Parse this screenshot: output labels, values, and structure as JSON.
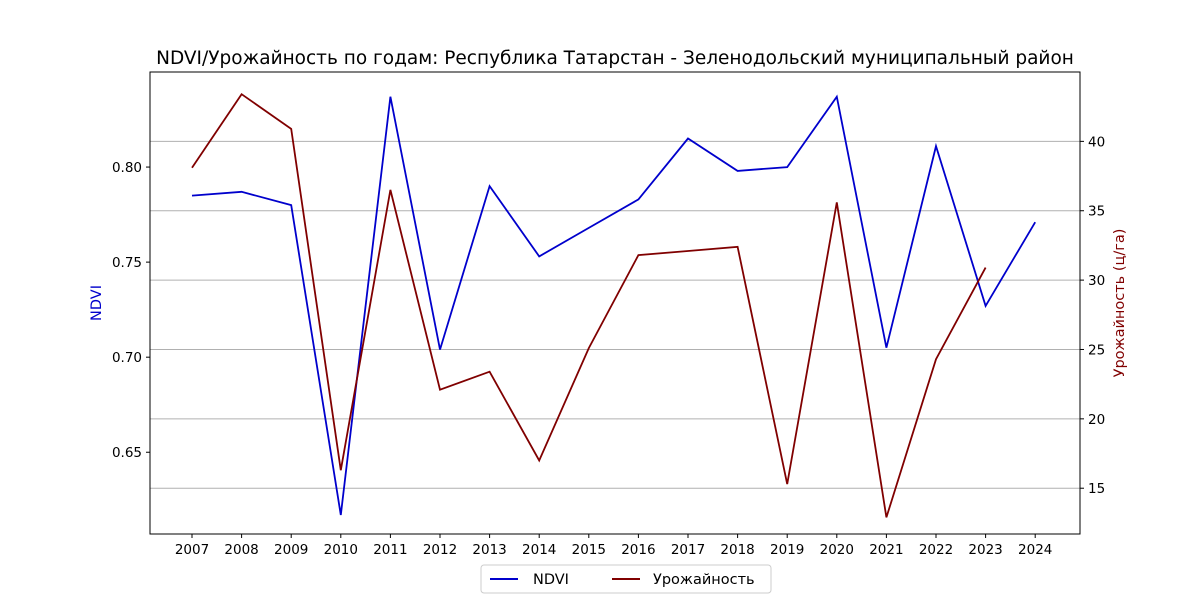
{
  "chart_data": {
    "type": "line",
    "title": "NDVI/Урожайность по годам: Республика Татарстан - Зеленодольский муниципальный район",
    "categories": [
      "2007",
      "2008",
      "2009",
      "2010",
      "2011",
      "2012",
      "2013",
      "2014",
      "2015",
      "2016",
      "2017",
      "2018",
      "2019",
      "2020",
      "2021",
      "2022",
      "2023",
      "2024"
    ],
    "y_left": {
      "label": "NDVI",
      "ylim": [
        0.607,
        0.85
      ],
      "ticks": [
        "0.65",
        "0.70",
        "0.75",
        "0.80"
      ],
      "tick_values": [
        0.65,
        0.7,
        0.75,
        0.8
      ],
      "color": "#0000cc"
    },
    "y_right": {
      "label": "Урожайность (ц/га)",
      "ylim": [
        11.7,
        45.0
      ],
      "ticks": [
        "15",
        "20",
        "25",
        "30",
        "35",
        "40"
      ],
      "tick_values": [
        15,
        20,
        25,
        30,
        35,
        40
      ],
      "color": "#800000"
    },
    "series": [
      {
        "name": "NDVI",
        "axis": "left",
        "color": "#0000cc",
        "values": [
          0.785,
          0.787,
          0.78,
          0.617,
          0.837,
          0.704,
          0.79,
          0.753,
          0.768,
          0.783,
          0.815,
          0.798,
          0.8,
          0.837,
          0.705,
          0.811,
          0.727,
          0.771
        ]
      },
      {
        "name": "Урожайность",
        "axis": "right",
        "color": "#800000",
        "values": [
          38.1,
          43.4,
          40.9,
          16.3,
          36.5,
          22.1,
          23.4,
          17.0,
          25.1,
          31.8,
          32.1,
          32.4,
          15.3,
          35.6,
          12.9,
          24.3,
          30.9,
          null
        ]
      }
    ],
    "grid": "horizontal (right axis)",
    "legend": "bottom-center"
  }
}
